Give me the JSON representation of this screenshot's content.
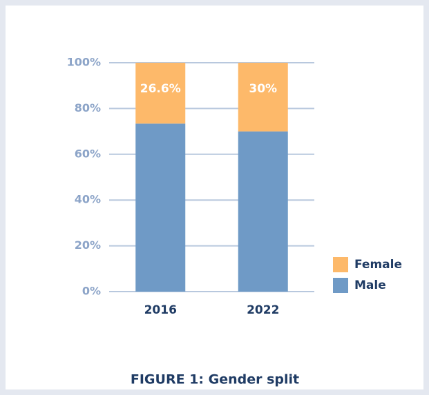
{
  "chart_data": {
    "type": "stacked_bar",
    "title": "FIGURE 1: Gender split",
    "categories": [
      "2016",
      "2022"
    ],
    "series": [
      {
        "name": "Male",
        "color": "#6f9ac6",
        "values": [
          73.4,
          70
        ]
      },
      {
        "name": "Female",
        "color": "#fdb96a",
        "values": [
          26.6,
          30
        ],
        "value_labels": [
          "26.6%",
          "30%"
        ]
      }
    ],
    "ylim": [
      0,
      100
    ],
    "yticks": [
      {
        "value": 0,
        "label": "0%"
      },
      {
        "value": 20,
        "label": "20%"
      },
      {
        "value": 40,
        "label": "40%"
      },
      {
        "value": 60,
        "label": "60%"
      },
      {
        "value": 80,
        "label": "80%"
      },
      {
        "value": 100,
        "label": "100%"
      }
    ],
    "grid": true,
    "legend": "right"
  }
}
